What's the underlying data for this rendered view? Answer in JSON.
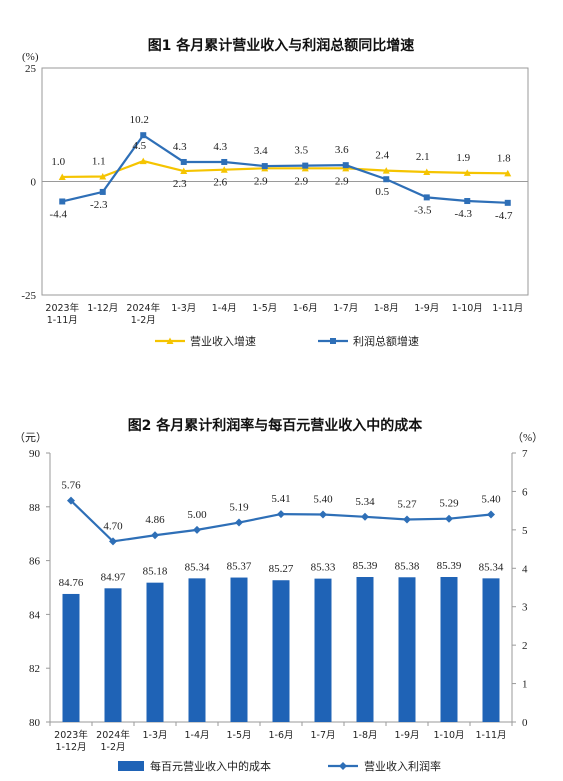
{
  "chart_data": [
    {
      "type": "line",
      "title": "图1  各月累计营业收入与利润总额同比增速",
      "y_unit": "(%)",
      "ylim": [
        -25,
        25
      ],
      "yticks": [
        25,
        0,
        -25
      ],
      "categories": [
        [
          "2023年",
          "1-11月"
        ],
        [
          "1-12月"
        ],
        [
          "2024年",
          "1-2月"
        ],
        [
          "1-3月"
        ],
        [
          "1-4月"
        ],
        [
          "1-5月"
        ],
        [
          "1-6月"
        ],
        [
          "1-7月"
        ],
        [
          "1-8月"
        ],
        [
          "1-9月"
        ],
        [
          "1-10月"
        ],
        [
          "1-11月"
        ]
      ],
      "series": [
        {
          "name": "营业收入增速",
          "color": "#f5c400",
          "marker": "triangle",
          "values": [
            1.0,
            1.1,
            4.5,
            2.3,
            2.6,
            2.9,
            2.9,
            2.9,
            2.4,
            2.1,
            1.9,
            1.8
          ],
          "labels": [
            "1.0",
            "1.1",
            "4.5",
            "2.3",
            "2.6",
            "2.9",
            "2.9",
            "2.9",
            "2.4",
            "2.1",
            "1.9",
            "1.8"
          ]
        },
        {
          "name": "利润总额增速",
          "color": "#2e6fb7",
          "marker": "square",
          "values": [
            -4.4,
            -2.3,
            10.2,
            4.3,
            4.3,
            3.4,
            3.5,
            3.6,
            0.5,
            -3.5,
            -4.3,
            -4.7
          ],
          "labels": [
            "-4.4",
            "-2.3",
            "10.2",
            "4.3",
            "4.3",
            "3.4",
            "3.5",
            "3.6",
            "0.5",
            "-3.5",
            "-4.3",
            "-4.7"
          ]
        }
      ],
      "legend": "bottom",
      "grid": false
    },
    {
      "type": "bar+line",
      "title": "图2  各月累计利润率与每百元营业收入中的成本",
      "y_left_unit": "（元）",
      "y_right_unit": "（%）",
      "ylim_left": [
        80,
        90
      ],
      "ylim_right": [
        0,
        7
      ],
      "yticks_left": [
        90,
        88,
        86,
        84,
        82,
        80
      ],
      "yticks_right": [
        7,
        6,
        5,
        4,
        3,
        2,
        1,
        0
      ],
      "categories": [
        [
          "2023年",
          "1-12月"
        ],
        [
          "2024年",
          "1-2月"
        ],
        [
          "1-3月"
        ],
        [
          "1-4月"
        ],
        [
          "1-5月"
        ],
        [
          "1-6月"
        ],
        [
          "1-7月"
        ],
        [
          "1-8月"
        ],
        [
          "1-9月"
        ],
        [
          "1-10月"
        ],
        [
          "1-11月"
        ]
      ],
      "bars": {
        "name": "每百元营业收入中的成本",
        "color": "#1f63b6",
        "values": [
          84.76,
          84.97,
          85.18,
          85.34,
          85.37,
          85.27,
          85.33,
          85.39,
          85.38,
          85.39,
          85.34
        ],
        "labels": [
          "84.76",
          "84.97",
          "85.18",
          "85.34",
          "85.37",
          "85.27",
          "85.33",
          "85.39",
          "85.38",
          "85.39",
          "85.34"
        ]
      },
      "line": {
        "name": "营业收入利润率",
        "color": "#2e6fb7",
        "values": [
          5.76,
          4.7,
          4.86,
          5.0,
          5.19,
          5.41,
          5.4,
          5.34,
          5.27,
          5.29,
          5.4
        ],
        "labels": [
          "5.76",
          "4.70",
          "4.86",
          "5.00",
          "5.19",
          "5.41",
          "5.40",
          "5.34",
          "5.27",
          "5.29",
          "5.40"
        ]
      },
      "legend": "bottom",
      "grid": false
    }
  ]
}
